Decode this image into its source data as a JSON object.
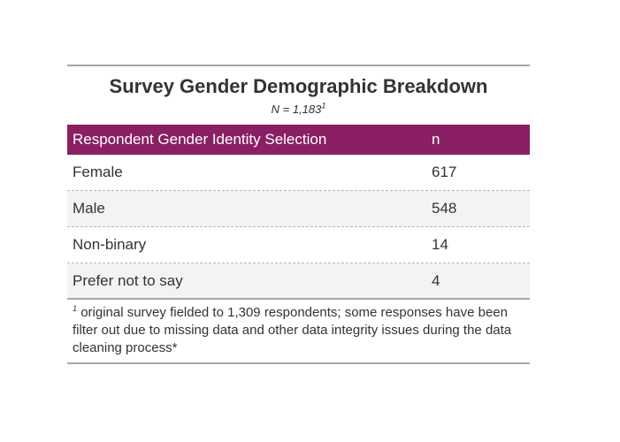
{
  "table": {
    "title": "Survey Gender Demographic Breakdown",
    "subtitle_text": "N = 1,183",
    "subtitle_mark": "1",
    "header": {
      "label": "Respondent Gender Identity Selection",
      "n": "n"
    },
    "rows": [
      {
        "label": "Female",
        "n": "617"
      },
      {
        "label": "Male",
        "n": "548"
      },
      {
        "label": "Non-binary",
        "n": "14"
      },
      {
        "label": "Prefer not to say",
        "n": "4"
      }
    ],
    "footnote_mark": "1",
    "footnote_text": "original survey fielded to 1,309 respondents; some responses have been filter out due to missing data and other data integrity issues during the data cleaning process*"
  },
  "colors": {
    "header_bg": "#8a1f64",
    "header_text": "#ffffff",
    "stripe_bg": "#f3f3f3",
    "rule": "#a8a8a8"
  }
}
